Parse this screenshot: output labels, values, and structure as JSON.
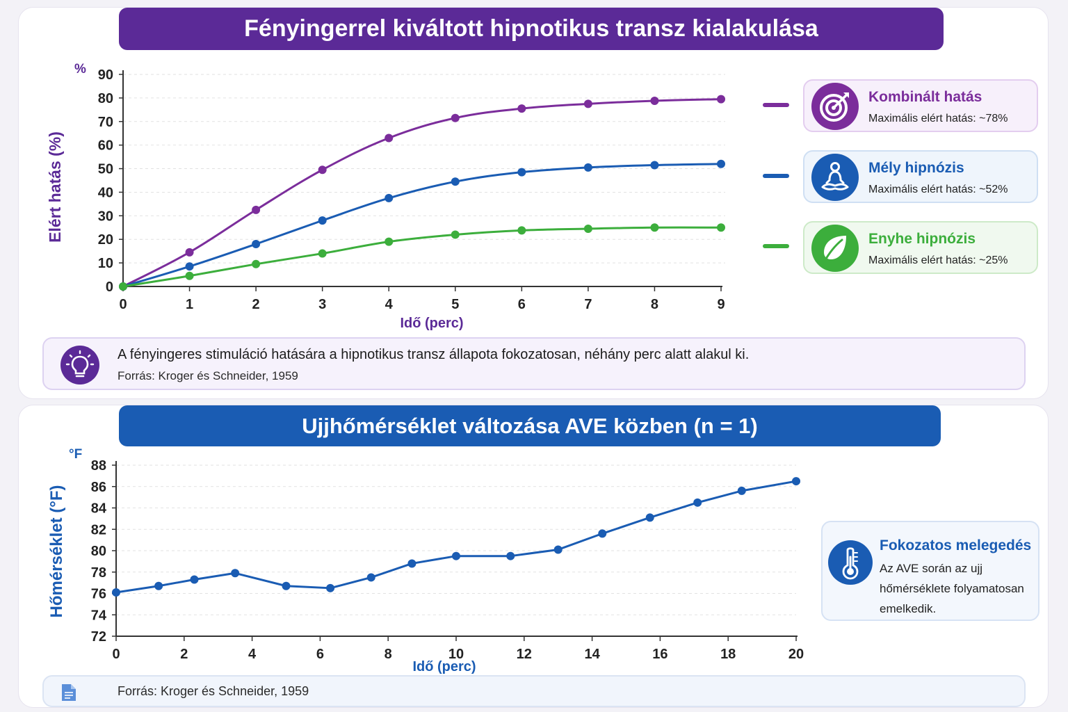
{
  "panel1": {
    "title": "Fényingerrel kiváltott hipnotikus transz kialakulása",
    "y_unit": "%",
    "legend": [
      {
        "title": "Kombinált hatás",
        "subtitle": "Maximális elért hatás: ~78%",
        "icon": "target-icon",
        "color": "#7b2d9b",
        "bg": "#f7f0fb",
        "border": "#e3cdef"
      },
      {
        "title": "Mély hipnózis",
        "subtitle": "Maximális elért hatás: ~52%",
        "icon": "meditation-icon",
        "color": "#1a5cb3",
        "bg": "#eff5fc",
        "border": "#cfdff3"
      },
      {
        "title": "Enyhe hipnózis",
        "subtitle": "Maximális elért hatás: ~25%",
        "icon": "leaf-icon",
        "color": "#3cae3c",
        "bg": "#f0f9ef",
        "border": "#cdeac8"
      }
    ],
    "note_text": "A fényingeres stimuláció hatására a hipnotikus transz állapota fokozatosan, néhány perc alatt alakul ki.",
    "note_source": "Forrás: Kroger és Schneider, 1959"
  },
  "panel2": {
    "title": "Ujjhőmérséklet változása AVE közben (n = 1)",
    "y_unit": "°F",
    "card_title": "Fokozatos melegedés",
    "card_text": "Az AVE során az ujj hőmérséklete folyamatosan emelkedik.",
    "source": "Forrás: Kroger és Schneider, 1959"
  },
  "colors": {
    "purple": "#7b2d9b",
    "blue": "#1a5cb3",
    "green": "#3cae3c",
    "title_purple": "#5b2a97"
  },
  "chart_data": [
    {
      "type": "line",
      "title": "Fényingerrel kiváltott hipnotikus transz kialakulása",
      "xlabel": "Idő (perc)",
      "ylabel": "Elért hatás (%)",
      "x": [
        0,
        1,
        2,
        3,
        4,
        5,
        6,
        7,
        8,
        9
      ],
      "xlim": [
        0,
        9
      ],
      "ylim": [
        0,
        90
      ],
      "xticks": [
        "0",
        "1",
        "2",
        "3",
        "4",
        "5",
        "6",
        "7",
        "8",
        "9"
      ],
      "yticks": [
        "0",
        "10",
        "20",
        "30",
        "40",
        "50",
        "60",
        "70",
        "80",
        "90"
      ],
      "grid": true,
      "legend_position": "right",
      "series": [
        {
          "name": "Kombinált hatás",
          "color": "#7b2d9b",
          "values": [
            0,
            14.5,
            32.5,
            49.5,
            63,
            71.5,
            75.5,
            77.5,
            78.8,
            79.5
          ]
        },
        {
          "name": "Mély hipnózis",
          "color": "#1a5cb3",
          "values": [
            0,
            8.5,
            18,
            28,
            37.5,
            44.5,
            48.5,
            50.5,
            51.5,
            52
          ]
        },
        {
          "name": "Enyhe hipnózis",
          "color": "#3cae3c",
          "values": [
            0,
            4.5,
            9.5,
            14,
            19,
            22,
            23.8,
            24.5,
            25,
            25
          ]
        }
      ]
    },
    {
      "type": "line",
      "title": "Ujjhőmérséklet változása AVE közben (n = 1)",
      "xlabel": "Idő (perc)",
      "ylabel": "Hőmérséklet (°F)",
      "xlim": [
        0,
        20
      ],
      "ylim": [
        72,
        88
      ],
      "xticks": [
        "0",
        "2",
        "4",
        "6",
        "8",
        "10",
        "12",
        "14",
        "16",
        "18",
        "20"
      ],
      "yticks": [
        "72",
        "74",
        "76",
        "78",
        "80",
        "82",
        "84",
        "86",
        "88"
      ],
      "grid": true,
      "series": [
        {
          "color": "#1a5cb3",
          "x": [
            0,
            1.25,
            2.3,
            3.5,
            5.0,
            6.3,
            7.5,
            8.7,
            10.0,
            11.6,
            13.0,
            14.3,
            15.7,
            17.1,
            18.4,
            20.0
          ],
          "values": [
            76.1,
            76.7,
            77.3,
            77.9,
            76.7,
            76.5,
            77.5,
            78.8,
            79.5,
            79.5,
            80.1,
            81.6,
            83.1,
            84.5,
            85.6,
            86.5
          ]
        }
      ]
    }
  ]
}
